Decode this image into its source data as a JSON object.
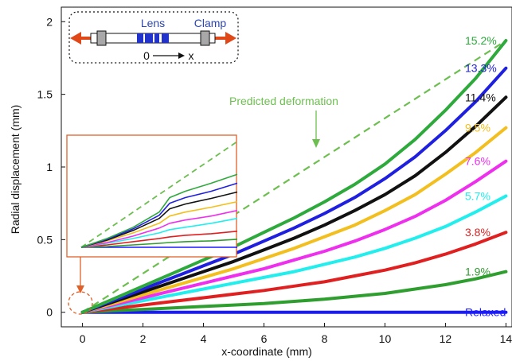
{
  "chart_data": {
    "type": "line",
    "xlabel": "x-coordinate (mm)",
    "ylabel": "Radial displacement (mm)",
    "xlim": [
      -0.7,
      14.2
    ],
    "ylim": [
      -0.1,
      2.1
    ],
    "xticks": [
      0,
      2,
      4,
      6,
      8,
      10,
      12,
      14
    ],
    "xtick_labels": [
      "0",
      "2",
      "4",
      "6",
      "8",
      "10",
      "12",
      "14"
    ],
    "yticks": [
      0,
      0.5,
      1,
      1.5,
      2
    ],
    "ytick_labels": [
      "0",
      "0.5",
      "1",
      "1.5",
      "2"
    ],
    "grid": false,
    "x": [
      0,
      1,
      2,
      3,
      4,
      5,
      6,
      7,
      8,
      9,
      10,
      11,
      12,
      13,
      14
    ],
    "series": [
      {
        "name": "Relaxed",
        "color": "#1a1aff",
        "values": [
          0,
          0,
          0,
          0,
          0,
          0,
          0,
          0,
          0,
          0,
          0,
          0,
          0,
          0,
          0
        ]
      },
      {
        "name": "1.9%",
        "color": "#2e9e2e",
        "values": [
          0,
          0.01,
          0.02,
          0.03,
          0.04,
          0.05,
          0.06,
          0.075,
          0.09,
          0.11,
          0.13,
          0.16,
          0.19,
          0.23,
          0.28
        ]
      },
      {
        "name": "3.8%",
        "color": "#e02020",
        "values": [
          0,
          0.025,
          0.05,
          0.075,
          0.1,
          0.125,
          0.15,
          0.18,
          0.21,
          0.25,
          0.29,
          0.34,
          0.4,
          0.47,
          0.55
        ]
      },
      {
        "name": "5.7%",
        "color": "#22eeee",
        "values": [
          0,
          0.04,
          0.08,
          0.12,
          0.16,
          0.2,
          0.24,
          0.28,
          0.33,
          0.38,
          0.44,
          0.51,
          0.59,
          0.69,
          0.8
        ]
      },
      {
        "name": "7.6%",
        "color": "#ee30ee",
        "values": [
          0,
          0.05,
          0.1,
          0.15,
          0.2,
          0.25,
          0.3,
          0.36,
          0.42,
          0.49,
          0.57,
          0.66,
          0.77,
          0.9,
          1.04
        ]
      },
      {
        "name": "9.5%",
        "color": "#f2bf1f",
        "values": [
          0,
          0.06,
          0.12,
          0.18,
          0.24,
          0.3,
          0.37,
          0.44,
          0.52,
          0.6,
          0.7,
          0.81,
          0.95,
          1.1,
          1.27
        ]
      },
      {
        "name": "11.4%",
        "color": "#111111",
        "values": [
          0,
          0.07,
          0.14,
          0.21,
          0.28,
          0.35,
          0.43,
          0.51,
          0.6,
          0.7,
          0.81,
          0.94,
          1.1,
          1.28,
          1.48
        ]
      },
      {
        "name": "13.3%",
        "color": "#1f1fe0",
        "values": [
          0,
          0.08,
          0.16,
          0.24,
          0.32,
          0.4,
          0.49,
          0.58,
          0.68,
          0.79,
          0.92,
          1.07,
          1.25,
          1.45,
          1.68
        ]
      },
      {
        "name": "15.2%",
        "color": "#2eaa3c",
        "values": [
          0,
          0.09,
          0.18,
          0.27,
          0.36,
          0.45,
          0.55,
          0.65,
          0.76,
          0.88,
          1.02,
          1.19,
          1.39,
          1.61,
          1.87
        ]
      }
    ],
    "predicted": {
      "name": "Predicted deformation",
      "color": "#6cbf4f",
      "x": [
        0,
        14
      ],
      "values": [
        0,
        1.87
      ]
    },
    "inset": {
      "x": [
        0,
        1,
        2,
        3,
        3.4,
        4,
        5,
        6
      ],
      "predicted": [
        0,
        0.22,
        0.44,
        0.66,
        0.75,
        0.88,
        1.1,
        1.32
      ],
      "series": [
        {
          "color": "#1a1aff",
          "values": [
            0,
            0,
            0,
            0,
            0,
            0,
            0,
            0
          ]
        },
        {
          "color": "#2e9e2e",
          "values": [
            0,
            0.01,
            0.03,
            0.05,
            0.06,
            0.07,
            0.08,
            0.1
          ]
        },
        {
          "color": "#e02020",
          "values": [
            0,
            0.03,
            0.07,
            0.11,
            0.13,
            0.15,
            0.17,
            0.2
          ]
        },
        {
          "color": "#22eeee",
          "values": [
            0,
            0.05,
            0.11,
            0.18,
            0.22,
            0.25,
            0.3,
            0.36
          ]
        },
        {
          "color": "#ee30ee",
          "values": [
            0,
            0.06,
            0.14,
            0.24,
            0.3,
            0.34,
            0.39,
            0.46
          ]
        },
        {
          "color": "#f2bf1f",
          "values": [
            0,
            0.08,
            0.18,
            0.3,
            0.39,
            0.44,
            0.5,
            0.57
          ]
        },
        {
          "color": "#111111",
          "values": [
            0,
            0.09,
            0.21,
            0.36,
            0.48,
            0.54,
            0.61,
            0.69
          ]
        },
        {
          "color": "#1f1fe0",
          "values": [
            0,
            0.1,
            0.23,
            0.4,
            0.55,
            0.62,
            0.7,
            0.8
          ]
        },
        {
          "color": "#2eaa3c",
          "values": [
            0,
            0.11,
            0.25,
            0.44,
            0.62,
            0.7,
            0.8,
            0.91
          ]
        }
      ]
    },
    "annotations": {
      "predicted_label": "Predicted deformation",
      "schematic": {
        "lens": "Lens",
        "clamp": "Clamp",
        "origin": "0",
        "axis": "x"
      }
    }
  }
}
